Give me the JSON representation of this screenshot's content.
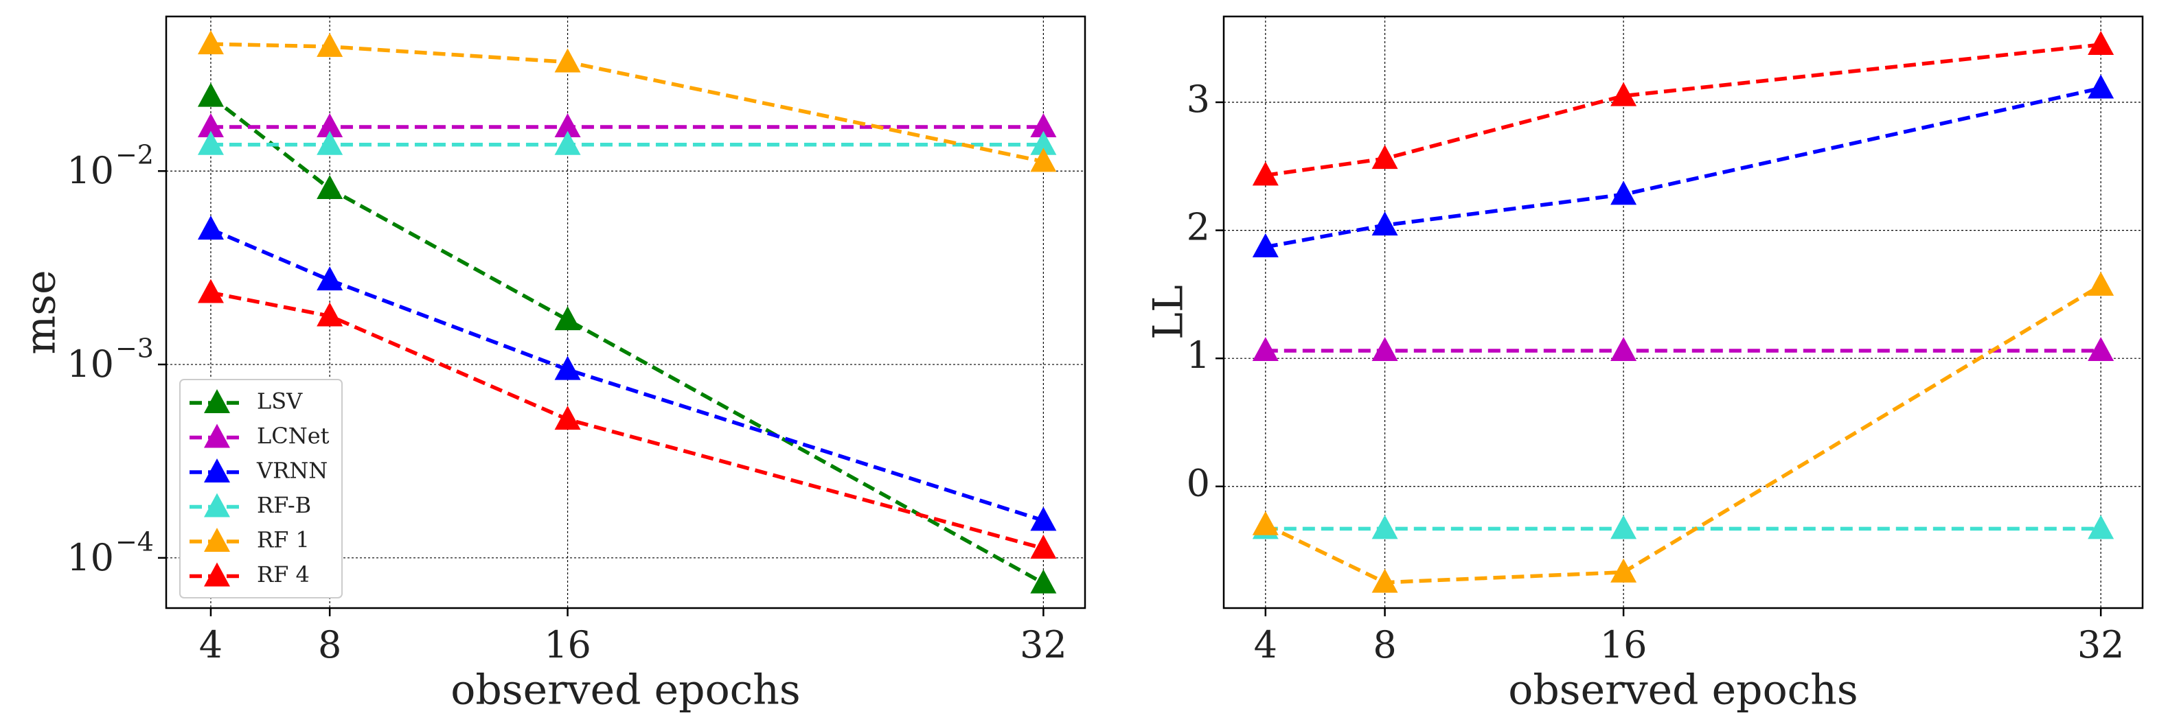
{
  "chart_data": [
    {
      "type": "line",
      "xlabel": "observed epochs",
      "ylabel": "mse",
      "log_y": true,
      "grid": true,
      "legend": "lower left",
      "x": [
        4,
        8,
        16,
        32
      ],
      "xlim": [
        2.5,
        33.4
      ],
      "xticks": [
        4,
        8,
        16,
        32
      ],
      "ylim": [
        5.5e-05,
        0.063
      ],
      "yticks": [
        {
          "value": 0.01,
          "label": "10",
          "exponent": "−2"
        },
        {
          "value": 0.001,
          "label": "10",
          "exponent": "−3"
        },
        {
          "value": 0.0001,
          "label": "10",
          "exponent": "−4"
        }
      ],
      "series": [
        {
          "name": "LSV",
          "color": "#008000",
          "values": [
            0.0243,
            0.0081,
            0.0017,
            7.4e-05
          ]
        },
        {
          "name": "LCNet",
          "color": "#bf00bf",
          "values": [
            0.0169,
            0.0169,
            0.0169,
            0.0169
          ]
        },
        {
          "name": "VRNN",
          "color": "#0000ff",
          "values": [
            0.005,
            0.00273,
            0.00094,
            0.000156
          ]
        },
        {
          "name": "RF-B",
          "color": "#40e0d0",
          "values": [
            0.0137,
            0.0137,
            0.0137,
            0.0137
          ]
        },
        {
          "name": "RF 1",
          "color": "#ffa500",
          "values": [
            0.0454,
            0.044,
            0.0366,
            0.0112
          ]
        },
        {
          "name": "RF 4",
          "color": "#ff0000",
          "values": [
            0.00235,
            0.00178,
            0.00052,
            0.000112
          ]
        }
      ]
    },
    {
      "type": "line",
      "xlabel": "observed epochs",
      "ylabel": "LL",
      "log_y": false,
      "grid": true,
      "x": [
        4,
        8,
        16,
        32
      ],
      "xlim": [
        2.6,
        33.4
      ],
      "xticks": [
        4,
        8,
        16,
        32
      ],
      "ylim": [
        -0.95,
        3.67
      ],
      "yticks": [
        0,
        1,
        2,
        3
      ],
      "series": [
        {
          "name": "LCNet",
          "color": "#bf00bf",
          "values": [
            1.06,
            1.06,
            1.06,
            1.06
          ]
        },
        {
          "name": "VRNN",
          "color": "#0000ff",
          "values": [
            1.87,
            2.04,
            2.28,
            3.11
          ]
        },
        {
          "name": "RF-B",
          "color": "#40e0d0",
          "values": [
            -0.33,
            -0.33,
            -0.33,
            -0.33
          ]
        },
        {
          "name": "RF 1",
          "color": "#ffa500",
          "values": [
            -0.3,
            -0.75,
            -0.67,
            1.57
          ]
        },
        {
          "name": "RF 4",
          "color": "#ff0000",
          "values": [
            2.43,
            2.56,
            3.05,
            3.45
          ]
        }
      ]
    }
  ]
}
